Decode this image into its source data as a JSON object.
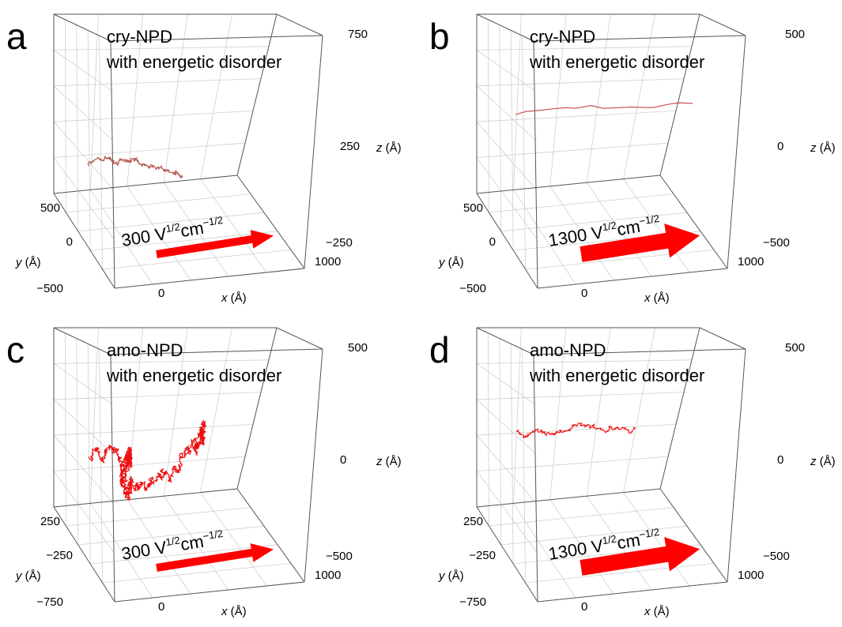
{
  "panels": [
    {
      "label": "a",
      "title": [
        "cry-NPD",
        "with energetic disorder"
      ],
      "field": [
        "300 V",
        "1/2",
        "cm",
        "−1/2"
      ],
      "z_ticks": [
        "750",
        "250",
        "−250"
      ],
      "y_ticks": [
        "500",
        "0",
        "−500"
      ],
      "x_ticks": [
        "0",
        "1000"
      ],
      "axes": {
        "x": [
          "x",
          " (Å)"
        ],
        "y": [
          "y",
          " (Å)"
        ],
        "z": [
          "z",
          " (Å)"
        ]
      }
    },
    {
      "label": "b",
      "title": [
        "cry-NPD",
        "with energetic disorder"
      ],
      "field": [
        "1300 V",
        "1/2",
        "cm",
        "−1/2"
      ],
      "z_ticks": [
        "500",
        "0",
        "−500"
      ],
      "y_ticks": [
        "500",
        "0",
        "−500"
      ],
      "x_ticks": [
        "0",
        "1000"
      ],
      "axes": {
        "x": [
          "x",
          " (Å)"
        ],
        "y": [
          "y",
          " (Å)"
        ],
        "z": [
          "z",
          " (Å)"
        ]
      }
    },
    {
      "label": "c",
      "title": [
        "amo-NPD",
        "with energetic disorder"
      ],
      "field": [
        "300 V",
        "1/2",
        "cm",
        "−1/2"
      ],
      "z_ticks": [
        "500",
        "0",
        "−500"
      ],
      "y_ticks": [
        "250",
        "−250",
        "−750"
      ],
      "x_ticks": [
        "0",
        "1000"
      ],
      "axes": {
        "x": [
          "x",
          " (Å)"
        ],
        "y": [
          "y",
          " (Å)"
        ],
        "z": [
          "z",
          " (Å)"
        ]
      }
    },
    {
      "label": "d",
      "title": [
        "amo-NPD",
        "with energetic disorder"
      ],
      "field": [
        "1300 V",
        "1/2",
        "cm",
        "−1/2"
      ],
      "z_ticks": [
        "500",
        "0",
        "−500"
      ],
      "y_ticks": [
        "250",
        "−250",
        "−750"
      ],
      "x_ticks": [
        "0",
        "1000"
      ],
      "axes": {
        "x": [
          "x",
          " (Å)"
        ],
        "y": [
          "y",
          " (Å)"
        ],
        "z": [
          "z",
          " (Å)"
        ]
      }
    }
  ]
}
